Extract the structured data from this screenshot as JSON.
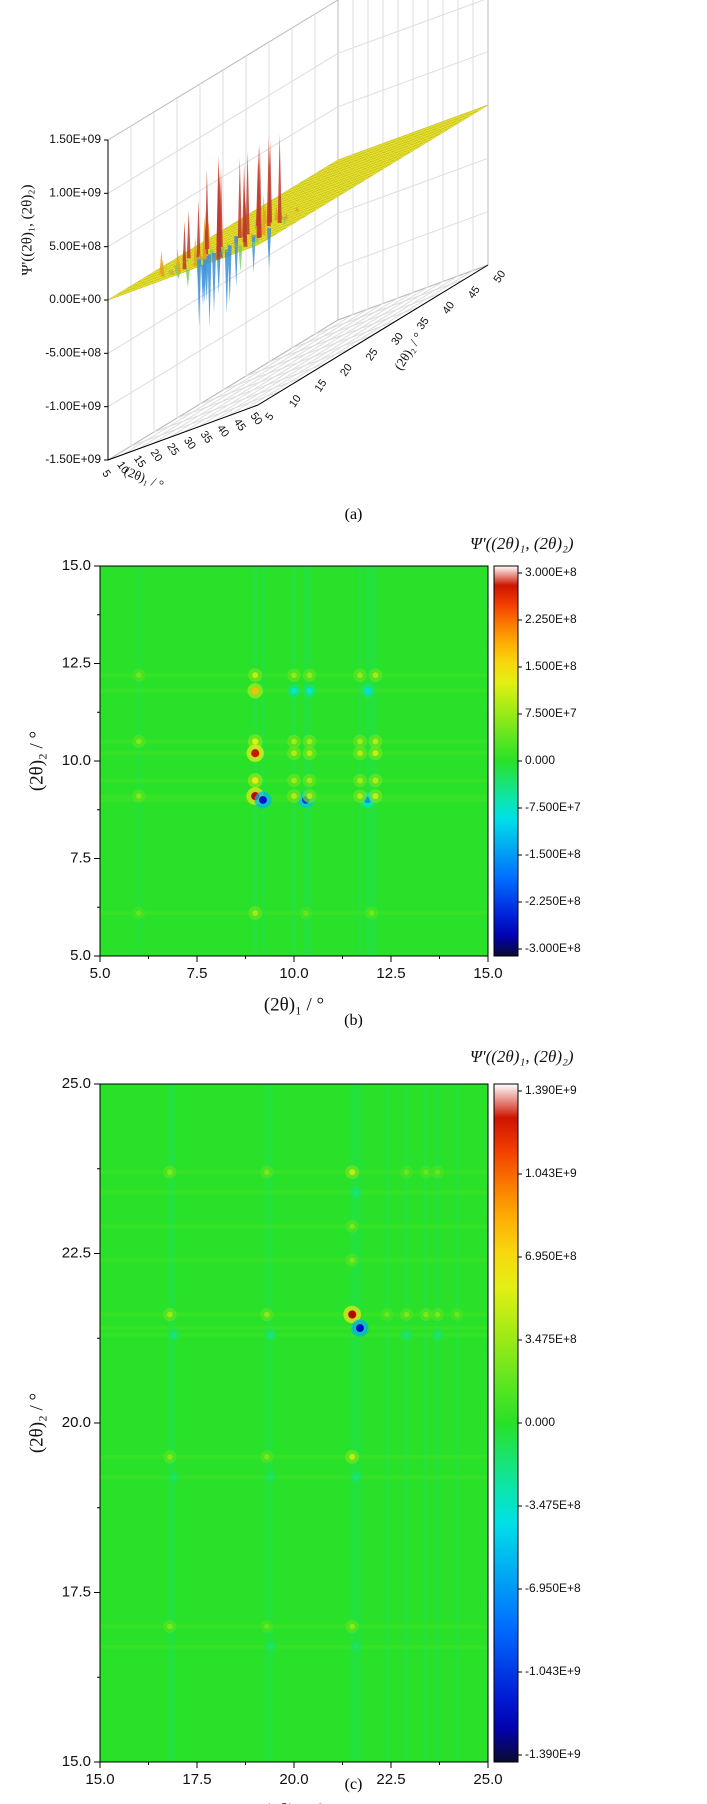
{
  "chart_data": [
    {
      "type": "surface",
      "caption": "(a)",
      "zlabel": "Ψ'((2θ)₁, (2θ)₂)",
      "xlabel": "(2θ)₁ / °",
      "ylabel": "(2θ)₂ / °",
      "z_ticks": [
        "1.50E+09",
        "1.00E+09",
        "5.00E+08",
        "0.00E+00",
        "-5.00E+08",
        "-1.00E+09",
        "-1.50E+09"
      ],
      "zlim": [
        -1500000000,
        1500000000
      ],
      "x_ticks": [
        "5",
        "10",
        "15",
        "20",
        "25",
        "30",
        "35",
        "40",
        "45",
        "50"
      ],
      "y_ticks": [
        "5",
        "10",
        "15",
        "20",
        "25",
        "30",
        "35",
        "40",
        "45",
        "50"
      ],
      "xlim": [
        5,
        50
      ],
      "ylim": [
        5,
        50
      ],
      "colors": {
        "high": "#c0392b",
        "mid": "#f2ee3a",
        "low": "#3a8fd8"
      }
    },
    {
      "type": "heatmap",
      "caption": "(b)",
      "title": "Ψ'((2θ)₁, (2θ)₂)",
      "xlabel": "(2θ)₁ / °",
      "ylabel": "(2θ)₂ / °",
      "xlim": [
        5,
        15
      ],
      "ylim": [
        5,
        15
      ],
      "x_ticks": [
        "5.0",
        "7.5",
        "10.0",
        "12.5",
        "15.0"
      ],
      "y_ticks": [
        "5.0",
        "7.5",
        "10.0",
        "12.5",
        "15.0"
      ],
      "colorbar_ticks": [
        "3.000E+8",
        "2.250E+8",
        "1.500E+8",
        "7.500E+7",
        "0.000",
        "-7.500E+7",
        "-1.500E+8",
        "-2.250E+8",
        "-3.000E+8"
      ],
      "clim": [
        -300000000,
        300000000
      ],
      "peaks": [
        {
          "x": 9.0,
          "y": 12.2,
          "v": 100000000
        },
        {
          "x": 9.0,
          "y": 11.8,
          "v": 170000000
        },
        {
          "x": 9.0,
          "y": 10.5,
          "v": 120000000
        },
        {
          "x": 9.0,
          "y": 10.2,
          "v": 270000000
        },
        {
          "x": 9.0,
          "y": 9.5,
          "v": 140000000
        },
        {
          "x": 9.0,
          "y": 9.1,
          "v": 280000000
        },
        {
          "x": 9.2,
          "y": 9.0,
          "v": -250000000
        },
        {
          "x": 10.3,
          "y": 9.0,
          "v": -220000000
        },
        {
          "x": 11.9,
          "y": 9.0,
          "v": -150000000
        },
        {
          "x": 10.0,
          "y": 12.2,
          "v": 70000000
        },
        {
          "x": 10.4,
          "y": 12.2,
          "v": 70000000
        },
        {
          "x": 11.7,
          "y": 12.2,
          "v": 70000000
        },
        {
          "x": 12.1,
          "y": 12.2,
          "v": 80000000
        },
        {
          "x": 10.0,
          "y": 11.8,
          "v": -80000000
        },
        {
          "x": 10.4,
          "y": 11.8,
          "v": -80000000
        },
        {
          "x": 11.9,
          "y": 11.8,
          "v": -90000000
        },
        {
          "x": 10.0,
          "y": 10.5,
          "v": 80000000
        },
        {
          "x": 10.4,
          "y": 10.5,
          "v": 80000000
        },
        {
          "x": 11.7,
          "y": 10.5,
          "v": 80000000
        },
        {
          "x": 12.1,
          "y": 10.5,
          "v": 90000000
        },
        {
          "x": 10.0,
          "y": 10.2,
          "v": 90000000
        },
        {
          "x": 10.4,
          "y": 10.2,
          "v": 90000000
        },
        {
          "x": 11.7,
          "y": 10.2,
          "v": 90000000
        },
        {
          "x": 12.1,
          "y": 10.2,
          "v": 100000000
        },
        {
          "x": 10.0,
          "y": 9.5,
          "v": 80000000
        },
        {
          "x": 10.4,
          "y": 9.5,
          "v": 80000000
        },
        {
          "x": 11.7,
          "y": 9.5,
          "v": 80000000
        },
        {
          "x": 12.1,
          "y": 9.5,
          "v": 90000000
        },
        {
          "x": 10.0,
          "y": 9.1,
          "v": 90000000
        },
        {
          "x": 10.4,
          "y": 9.1,
          "v": 90000000
        },
        {
          "x": 11.7,
          "y": 9.1,
          "v": 90000000
        },
        {
          "x": 12.1,
          "y": 9.1,
          "v": 100000000
        },
        {
          "x": 6.0,
          "y": 10.5,
          "v": 60000000
        },
        {
          "x": 6.0,
          "y": 9.1,
          "v": 60000000
        },
        {
          "x": 6.0,
          "y": 12.2,
          "v": 50000000
        },
        {
          "x": 9.0,
          "y": 6.1,
          "v": 80000000
        },
        {
          "x": 6.0,
          "y": 6.1,
          "v": 40000000
        },
        {
          "x": 10.3,
          "y": 6.1,
          "v": 40000000
        },
        {
          "x": 12.0,
          "y": 6.1,
          "v": 50000000
        }
      ]
    },
    {
      "type": "heatmap",
      "caption": "(c)",
      "title": "Ψ'((2θ)₁, (2θ)₂)",
      "xlabel": "(2θ)₁ / °",
      "ylabel": "(2θ)₂ / °",
      "xlim": [
        15,
        25
      ],
      "ylim": [
        15,
        25
      ],
      "x_ticks": [
        "15.0",
        "17.5",
        "20.0",
        "22.5",
        "25.0"
      ],
      "y_ticks": [
        "15.0",
        "17.5",
        "20.0",
        "22.5",
        "25.0"
      ],
      "colorbar_ticks": [
        "1.390E+9",
        "1.043E+9",
        "6.950E+8",
        "3.475E+8",
        "0.000",
        "-3.475E+8",
        "-6.950E+8",
        "-1.043E+9",
        "-1.390E+9"
      ],
      "clim": [
        -1390000000,
        1390000000
      ],
      "peaks": [
        {
          "x": 21.5,
          "y": 21.6,
          "v": 1300000000
        },
        {
          "x": 21.7,
          "y": 21.4,
          "v": -1200000000
        },
        {
          "x": 21.5,
          "y": 23.7,
          "v": 450000000
        },
        {
          "x": 21.5,
          "y": 19.5,
          "v": 450000000
        },
        {
          "x": 21.5,
          "y": 17.0,
          "v": 300000000
        },
        {
          "x": 21.5,
          "y": 22.9,
          "v": 250000000
        },
        {
          "x": 21.5,
          "y": 22.4,
          "v": 250000000
        },
        {
          "x": 16.8,
          "y": 21.6,
          "v": 350000000
        },
        {
          "x": 16.8,
          "y": 23.7,
          "v": 280000000
        },
        {
          "x": 16.8,
          "y": 19.5,
          "v": 280000000
        },
        {
          "x": 16.8,
          "y": 17.0,
          "v": 250000000
        },
        {
          "x": 19.3,
          "y": 21.6,
          "v": 300000000
        },
        {
          "x": 19.3,
          "y": 23.7,
          "v": 250000000
        },
        {
          "x": 19.3,
          "y": 19.5,
          "v": 250000000
        },
        {
          "x": 19.3,
          "y": 17.0,
          "v": 200000000
        },
        {
          "x": 22.4,
          "y": 21.6,
          "v": 200000000
        },
        {
          "x": 22.9,
          "y": 21.6,
          "v": 250000000
        },
        {
          "x": 23.4,
          "y": 21.6,
          "v": 250000000
        },
        {
          "x": 23.7,
          "y": 21.6,
          "v": 250000000
        },
        {
          "x": 24.2,
          "y": 21.6,
          "v": 200000000
        },
        {
          "x": 22.9,
          "y": 23.7,
          "v": 200000000
        },
        {
          "x": 23.4,
          "y": 23.7,
          "v": 200000000
        },
        {
          "x": 23.7,
          "y": 23.7,
          "v": 200000000
        },
        {
          "x": 16.9,
          "y": 21.3,
          "v": -200000000
        },
        {
          "x": 19.4,
          "y": 21.3,
          "v": -200000000
        },
        {
          "x": 22.9,
          "y": 21.3,
          "v": -180000000
        },
        {
          "x": 23.7,
          "y": 21.3,
          "v": -180000000
        },
        {
          "x": 16.9,
          "y": 19.2,
          "v": -150000000
        },
        {
          "x": 19.4,
          "y": 19.2,
          "v": -150000000
        },
        {
          "x": 21.6,
          "y": 19.2,
          "v": -200000000
        },
        {
          "x": 19.4,
          "y": 16.7,
          "v": -150000000
        },
        {
          "x": 21.6,
          "y": 16.7,
          "v": -150000000
        },
        {
          "x": 21.6,
          "y": 23.4,
          "v": -200000000
        }
      ]
    }
  ]
}
